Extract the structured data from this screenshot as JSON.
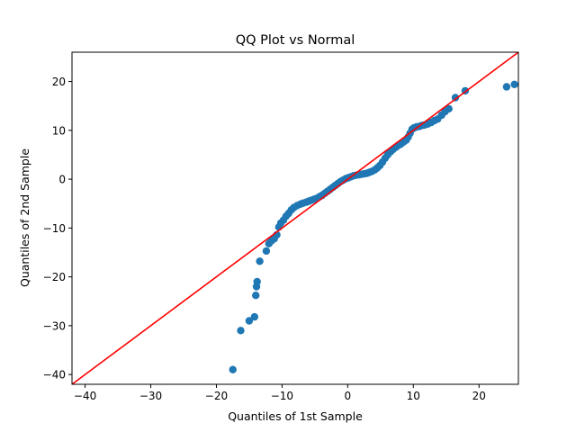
{
  "chart_data": {
    "type": "scatter",
    "title": "QQ Plot vs Normal",
    "xlabel": "Quantiles of 1st Sample",
    "ylabel": "Quantiles of 2nd Sample",
    "xlim": [
      -42,
      26
    ],
    "ylim": [
      -42,
      26
    ],
    "xticks": [
      -40,
      -30,
      -20,
      -10,
      0,
      10,
      20
    ],
    "yticks": [
      -40,
      -30,
      -20,
      -10,
      0,
      10,
      20
    ],
    "xtick_labels": [
      "−40",
      "−30",
      "−20",
      "−10",
      "0",
      "10",
      "20"
    ],
    "ytick_labels": [
      "−40",
      "−30",
      "−20",
      "−10",
      "0",
      "10",
      "20"
    ],
    "grid": false,
    "marker_color": "#1f77b4",
    "reference_line": {
      "type": "45-degree",
      "color": "#ff0000",
      "from": [
        -42,
        -42
      ],
      "to": [
        26,
        26
      ]
    },
    "points": [
      [
        -17.5,
        -39.0
      ],
      [
        -16.3,
        -31.0
      ],
      [
        -15.0,
        -29.0
      ],
      [
        -14.2,
        -28.2
      ],
      [
        -14.0,
        -23.8
      ],
      [
        -13.9,
        -22.0
      ],
      [
        -13.8,
        -21.0
      ],
      [
        -13.4,
        -16.8
      ],
      [
        -12.4,
        -14.7
      ],
      [
        -12.0,
        -13.2
      ],
      [
        -11.6,
        -12.6
      ],
      [
        -11.2,
        -12.2
      ],
      [
        -10.8,
        -11.4
      ],
      [
        -10.5,
        -9.8
      ],
      [
        -10.2,
        -9.0
      ],
      [
        -9.8,
        -8.4
      ],
      [
        -9.4,
        -7.6
      ],
      [
        -9.0,
        -7.0
      ],
      [
        -8.6,
        -6.3
      ],
      [
        -8.2,
        -5.8
      ],
      [
        -7.7,
        -5.4
      ],
      [
        -7.2,
        -5.1
      ],
      [
        -6.8,
        -4.9
      ],
      [
        -6.3,
        -4.7
      ],
      [
        -5.9,
        -4.5
      ],
      [
        -5.5,
        -4.3
      ],
      [
        -5.1,
        -4.1
      ],
      [
        -4.7,
        -3.9
      ],
      [
        -4.3,
        -3.6
      ],
      [
        -3.9,
        -3.3
      ],
      [
        -3.5,
        -2.9
      ],
      [
        -3.1,
        -2.5
      ],
      [
        -2.7,
        -2.1
      ],
      [
        -2.3,
        -1.7
      ],
      [
        -1.9,
        -1.3
      ],
      [
        -1.5,
        -0.9
      ],
      [
        -1.1,
        -0.5
      ],
      [
        -0.7,
        -0.2
      ],
      [
        -0.3,
        0.1
      ],
      [
        0.1,
        0.3
      ],
      [
        0.5,
        0.5
      ],
      [
        0.9,
        0.7
      ],
      [
        1.3,
        0.8
      ],
      [
        1.7,
        0.9
      ],
      [
        2.1,
        1.0
      ],
      [
        2.5,
        1.1
      ],
      [
        2.9,
        1.2
      ],
      [
        3.3,
        1.4
      ],
      [
        3.7,
        1.6
      ],
      [
        4.1,
        1.9
      ],
      [
        4.5,
        2.3
      ],
      [
        4.9,
        2.8
      ],
      [
        5.3,
        3.5
      ],
      [
        5.7,
        4.3
      ],
      [
        6.1,
        5.0
      ],
      [
        6.5,
        5.6
      ],
      [
        6.9,
        6.1
      ],
      [
        7.3,
        6.5
      ],
      [
        7.7,
        6.9
      ],
      [
        8.1,
        7.2
      ],
      [
        8.5,
        7.6
      ],
      [
        8.9,
        8.0
      ],
      [
        9.2,
        8.6
      ],
      [
        9.5,
        9.4
      ],
      [
        9.8,
        10.2
      ],
      [
        10.1,
        10.5
      ],
      [
        10.5,
        10.7
      ],
      [
        10.9,
        10.8
      ],
      [
        11.3,
        11.0
      ],
      [
        11.7,
        11.1
      ],
      [
        12.2,
        11.3
      ],
      [
        12.7,
        11.6
      ],
      [
        13.2,
        12.0
      ],
      [
        13.7,
        12.3
      ],
      [
        14.3,
        13.1
      ],
      [
        14.8,
        13.8
      ],
      [
        15.4,
        14.4
      ],
      [
        16.4,
        16.7
      ],
      [
        17.9,
        18.1
      ],
      [
        24.2,
        18.9
      ],
      [
        25.4,
        19.4
      ]
    ]
  }
}
